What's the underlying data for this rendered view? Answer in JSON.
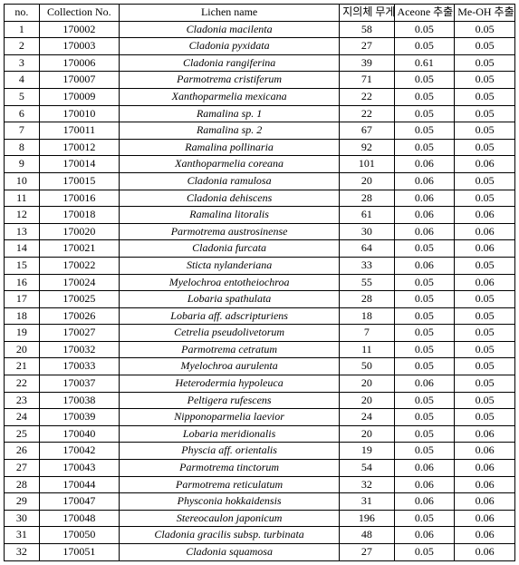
{
  "columns": [
    "no.",
    "Collection\nNo.",
    "Lichen name",
    "지의체\n무게(g)",
    "Aceone\n추출물(g)",
    "Me-OH\n추출물(g)"
  ],
  "rows": [
    {
      "no": "1",
      "coll": "170002",
      "name": "Cladonia macilenta",
      "wt": "58",
      "ace": "0.05",
      "me": "0.05"
    },
    {
      "no": "2",
      "coll": "170003",
      "name": "Cladonia pyxidata",
      "wt": "27",
      "ace": "0.05",
      "me": "0.05"
    },
    {
      "no": "3",
      "coll": "170006",
      "name": "Cladonia rangiferina",
      "wt": "39",
      "ace": "0.61",
      "me": "0.05"
    },
    {
      "no": "4",
      "coll": "170007",
      "name": "Parmotrema cristiferum",
      "wt": "71",
      "ace": "0.05",
      "me": "0.05"
    },
    {
      "no": "5",
      "coll": "170009",
      "name": "Xanthoparmelia mexicana",
      "wt": "22",
      "ace": "0.05",
      "me": "0.05"
    },
    {
      "no": "6",
      "coll": "170010",
      "name": "Ramalina sp. 1",
      "wt": "22",
      "ace": "0.05",
      "me": "0.05"
    },
    {
      "no": "7",
      "coll": "170011",
      "name": "Ramalina sp. 2",
      "wt": "67",
      "ace": "0.05",
      "me": "0.05"
    },
    {
      "no": "8",
      "coll": "170012",
      "name": "Ramalina pollinaria",
      "wt": "92",
      "ace": "0.05",
      "me": "0.05"
    },
    {
      "no": "9",
      "coll": "170014",
      "name": "Xanthoparmelia coreana",
      "wt": "101",
      "ace": "0.06",
      "me": "0.06"
    },
    {
      "no": "10",
      "coll": "170015",
      "name": "Cladonia ramulosa",
      "wt": "20",
      "ace": "0.06",
      "me": "0.05"
    },
    {
      "no": "11",
      "coll": "170016",
      "name": "Cladonia dehiscens",
      "wt": "28",
      "ace": "0.06",
      "me": "0.05"
    },
    {
      "no": "12",
      "coll": "170018",
      "name": "Ramalina litoralis",
      "wt": "61",
      "ace": "0.06",
      "me": "0.06"
    },
    {
      "no": "13",
      "coll": "170020",
      "name": "Parmotrema austrosinense",
      "wt": "30",
      "ace": "0.06",
      "me": "0.06"
    },
    {
      "no": "14",
      "coll": "170021",
      "name": "Cladonia furcata",
      "wt": "64",
      "ace": "0.05",
      "me": "0.06"
    },
    {
      "no": "15",
      "coll": "170022",
      "name": "Sticta nylanderiana",
      "wt": "33",
      "ace": "0.06",
      "me": "0.05"
    },
    {
      "no": "16",
      "coll": "170024",
      "name": "Myelochroa entotheiochroa",
      "wt": "55",
      "ace": "0.05",
      "me": "0.06"
    },
    {
      "no": "17",
      "coll": "170025",
      "name": "Lobaria spathulata",
      "wt": "28",
      "ace": "0.05",
      "me": "0.05"
    },
    {
      "no": "18",
      "coll": "170026",
      "name": "Lobaria aff. adscripturiens",
      "wt": "18",
      "ace": "0.05",
      "me": "0.05"
    },
    {
      "no": "19",
      "coll": "170027",
      "name": "Cetrelia pseudolivetorum",
      "wt": "7",
      "ace": "0.05",
      "me": "0.05"
    },
    {
      "no": "20",
      "coll": "170032",
      "name": "Parmotrema cetratum",
      "wt": "11",
      "ace": "0.05",
      "me": "0.05"
    },
    {
      "no": "21",
      "coll": "170033",
      "name": "Myelochroa aurulenta",
      "wt": "50",
      "ace": "0.05",
      "me": "0.05"
    },
    {
      "no": "22",
      "coll": "170037",
      "name": "Heterodermia hypoleuca",
      "wt": "20",
      "ace": "0.06",
      "me": "0.05"
    },
    {
      "no": "23",
      "coll": "170038",
      "name": "Peltigera rufescens",
      "wt": "20",
      "ace": "0.05",
      "me": "0.05"
    },
    {
      "no": "24",
      "coll": "170039",
      "name": "Nipponoparmelia laevior",
      "wt": "24",
      "ace": "0.05",
      "me": "0.05"
    },
    {
      "no": "25",
      "coll": "170040",
      "name": "Lobaria meridionalis",
      "wt": "20",
      "ace": "0.05",
      "me": "0.06"
    },
    {
      "no": "26",
      "coll": "170042",
      "name": "Physcia aff. orientalis",
      "wt": "19",
      "ace": "0.05",
      "me": "0.06"
    },
    {
      "no": "27",
      "coll": "170043",
      "name": "Parmotrema tinctorum",
      "wt": "54",
      "ace": "0.06",
      "me": "0.06"
    },
    {
      "no": "28",
      "coll": "170044",
      "name": "Parmotrema reticulatum",
      "wt": "32",
      "ace": "0.06",
      "me": "0.06"
    },
    {
      "no": "29",
      "coll": "170047",
      "name": "Physconia hokkaidensis",
      "wt": "31",
      "ace": "0.06",
      "me": "0.06"
    },
    {
      "no": "30",
      "coll": "170048",
      "name": "Stereocaulon japonicum",
      "wt": "196",
      "ace": "0.05",
      "me": "0.06"
    },
    {
      "no": "31",
      "coll": "170050",
      "name": "Cladonia gracilis subsp. turbinata",
      "wt": "48",
      "ace": "0.06",
      "me": "0.06"
    },
    {
      "no": "32",
      "coll": "170051",
      "name": "Cladonia squamosa",
      "wt": "27",
      "ace": "0.05",
      "me": "0.06"
    }
  ]
}
